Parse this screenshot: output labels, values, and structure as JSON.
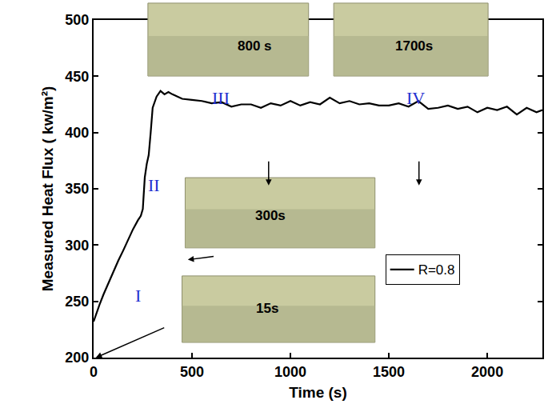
{
  "chart_data": {
    "type": "line",
    "x_label": "Time (s)",
    "y_label": "Measured Heat Flux ( kw/m²)",
    "series": [
      {
        "name": "R=0.8",
        "color": "#000000",
        "x": [
          0,
          15,
          30,
          50,
          75,
          100,
          125,
          150,
          175,
          200,
          225,
          240,
          250,
          260,
          270,
          280,
          290,
          300,
          320,
          340,
          360,
          380,
          400,
          450,
          500,
          550,
          600,
          650,
          700,
          750,
          800,
          850,
          900,
          950,
          1000,
          1050,
          1100,
          1150,
          1200,
          1250,
          1300,
          1350,
          1400,
          1450,
          1500,
          1550,
          1600,
          1650,
          1700,
          1750,
          1800,
          1850,
          1900,
          1950,
          2000,
          2050,
          2100,
          2150,
          2200,
          2250,
          2280
        ],
        "values": [
          232,
          240,
          247,
          256,
          266,
          277,
          286,
          295,
          305,
          314,
          322,
          326,
          332,
          360,
          372,
          380,
          400,
          422,
          432,
          437,
          434,
          436,
          434,
          430,
          429,
          428,
          426,
          427,
          423,
          425,
          425,
          422,
          426,
          424,
          428,
          424,
          427,
          425,
          431,
          426,
          428,
          425,
          426,
          424,
          424,
          426,
          423,
          428,
          421,
          422,
          424,
          421,
          423,
          418,
          422,
          420,
          423,
          416,
          422,
          418,
          420
        ]
      }
    ],
    "xlim": [
      0,
      2280
    ],
    "xticks": [
      0,
      500,
      1000,
      1500,
      2000
    ],
    "ylim": [
      200,
      500
    ],
    "yticks": [
      200,
      250,
      300,
      350,
      400,
      450,
      500
    ],
    "grid": false,
    "legend": "right",
    "annotations": [
      {
        "text": "I",
        "x": 225,
        "y": 255
      },
      {
        "text": "II",
        "x": 307,
        "y": 353
      },
      {
        "text": "III",
        "x": 646,
        "y": 431
      },
      {
        "text": "IV",
        "x": 1636,
        "y": 431
      }
    ],
    "insets": [
      {
        "text": "800 s",
        "x": 820,
        "y": 477
      },
      {
        "text": "1700s",
        "x": 1628,
        "y": 477
      },
      {
        "text": "300s",
        "x": 900,
        "y": 326
      },
      {
        "text": "15s",
        "x": 880,
        "y": 244
      }
    ]
  }
}
